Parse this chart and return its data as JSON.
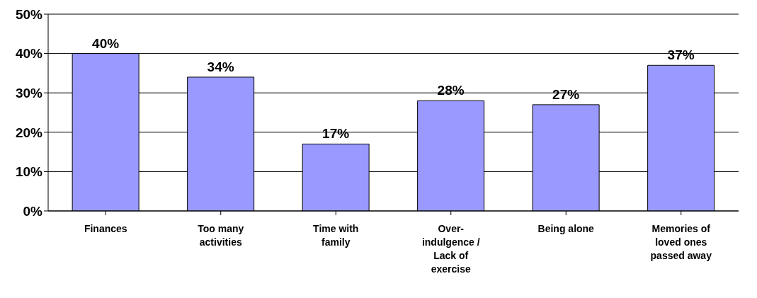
{
  "chart_data": {
    "type": "bar",
    "categories": [
      "Finances",
      "Too many activities",
      "Time with family",
      "Over-indulgence / Lack of exercise",
      "Being alone",
      "Memories of loved ones passed away"
    ],
    "values": [
      40,
      34,
      17,
      28,
      27,
      37
    ],
    "color": "#9999ff",
    "value_labels": [
      "40%",
      "34%",
      "17%",
      "28%",
      "27%",
      "37%"
    ],
    "ylim": [
      0,
      50
    ],
    "yticks": [
      {
        "value": 0,
        "label": "0%"
      },
      {
        "value": 10,
        "label": "10%"
      },
      {
        "value": 20,
        "label": "20%"
      },
      {
        "value": 30,
        "label": "30%"
      },
      {
        "value": 40,
        "label": "40%"
      },
      {
        "value": 50,
        "label": "50%"
      }
    ],
    "grid": "y"
  }
}
